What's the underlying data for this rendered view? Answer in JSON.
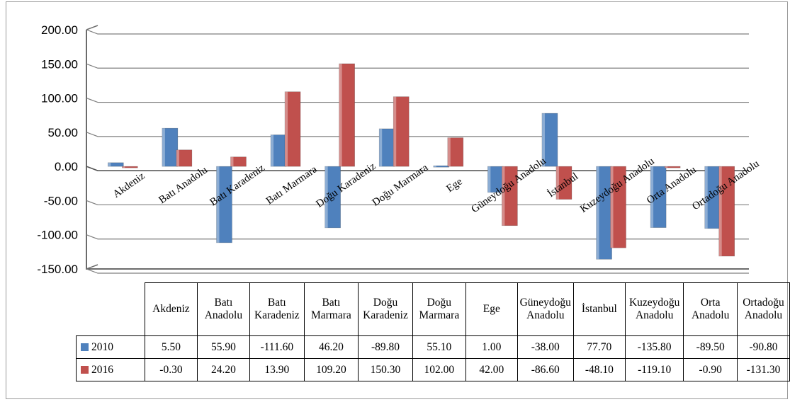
{
  "chart_data": {
    "type": "bar",
    "categories": [
      "Akdeniz",
      "Batı Anadolu",
      "Batı Karadeniz",
      "Batı Marmara",
      "Doğu Karadeniz",
      "Doğu Marmara",
      "Ege",
      "Güneydoğu Anadolu",
      "İstanbul",
      "Kuzeydoğu Anadolu",
      "Orta Anadolu",
      "Ortadoğu Anadolu"
    ],
    "table_headers": [
      "Akdeniz",
      "Batı Anadolu",
      "Batı Karadeniz",
      "Batı Marmara",
      "Doğu Karadeniz",
      "Doğu Marmara",
      "Ege",
      "Güneydoğu Anadolu",
      "İstanbul",
      "Kuzeydoğu Anadolu",
      "Orta Anadolu",
      "Ortadoğu Anadolu"
    ],
    "series": [
      {
        "name": "2010",
        "color": "#4F81BD",
        "values": [
          5.5,
          55.9,
          -111.6,
          46.2,
          -89.8,
          55.1,
          1.0,
          -38.0,
          77.7,
          -135.8,
          -89.5,
          -90.8
        ]
      },
      {
        "name": "2016",
        "color": "#C0504D",
        "values": [
          -0.3,
          24.2,
          13.9,
          109.2,
          150.3,
          102.0,
          42.0,
          -86.6,
          -48.1,
          -119.1,
          -0.9,
          -131.3
        ]
      }
    ],
    "table_values": [
      [
        "5.50",
        "55.90",
        "-111.60",
        "46.20",
        "-89.80",
        "55.10",
        "1.00",
        "-38.00",
        "77.70",
        "-135.80",
        "-89.50",
        "-90.80"
      ],
      [
        "-0.30",
        "24.20",
        "13.90",
        "109.20",
        "150.30",
        "102.00",
        "42.00",
        "-86.60",
        "-48.10",
        "-119.10",
        "-0.90",
        "-131.30"
      ]
    ],
    "yticks": [
      "200.00",
      "150.00",
      "100.00",
      "50.00",
      "0.00",
      "-50.00",
      "-100.00",
      "-150.00"
    ],
    "ylim": [
      -150,
      200
    ],
    "grid": true,
    "legend": "data-table"
  }
}
